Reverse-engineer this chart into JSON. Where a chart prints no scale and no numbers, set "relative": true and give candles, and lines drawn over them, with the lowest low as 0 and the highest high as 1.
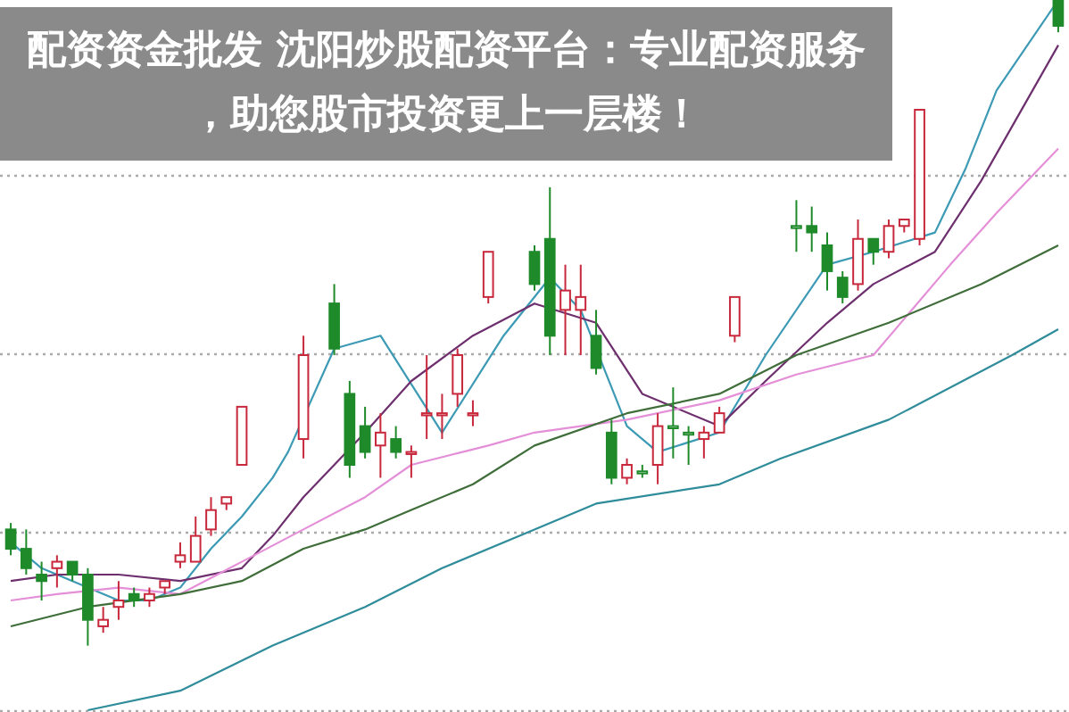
{
  "chart_data": {
    "type": "candlestick",
    "title": "配资资金批发 沈阳炒股配资平台：专业配资服务，助您股市投资更上一层楼！",
    "relative": true,
    "grid": "y",
    "categories": [
      null,
      null,
      null,
      null,
      null,
      null,
      null,
      null,
      null,
      null,
      null,
      null,
      null,
      null,
      null,
      null,
      null,
      null,
      null,
      null,
      null,
      null,
      null,
      null,
      null,
      null,
      null,
      null,
      null,
      null,
      null,
      null,
      null,
      null,
      null,
      null,
      null,
      null,
      null,
      null,
      null,
      null,
      null,
      null,
      null,
      null,
      null,
      null,
      null,
      null,
      null,
      null,
      null,
      null,
      null,
      null,
      null,
      null,
      null,
      null,
      null,
      null,
      null,
      null,
      null,
      null,
      null,
      null,
      null
    ],
    "ohlc": [
      [
        0.18,
        0.19,
        0.14,
        0.15
      ],
      [
        0.15,
        0.18,
        0.11,
        0.12
      ],
      [
        0.11,
        0.13,
        0.07,
        0.1
      ],
      [
        0.12,
        0.14,
        0.09,
        0.13
      ],
      [
        0.13,
        0.13,
        0.1,
        0.11
      ],
      [
        0.11,
        0.12,
        0.0,
        0.04
      ],
      [
        0.03,
        0.06,
        0.02,
        0.04
      ],
      [
        0.06,
        0.1,
        0.04,
        0.07
      ],
      [
        0.08,
        0.09,
        0.06,
        0.07
      ],
      [
        0.07,
        0.09,
        0.06,
        0.08
      ],
      [
        0.09,
        0.1,
        0.08,
        0.1
      ],
      [
        0.13,
        0.16,
        0.12,
        0.14
      ],
      [
        0.13,
        0.2,
        0.13,
        0.17
      ],
      [
        0.18,
        0.23,
        0.17,
        0.21
      ],
      [
        0.22,
        0.23,
        0.21,
        0.23
      ],
      [
        0.28,
        0.37,
        0.28,
        0.37
      ],
      null,
      null,
      null,
      [
        0.32,
        0.48,
        0.29,
        0.45
      ],
      null,
      [
        0.53,
        0.56,
        0.45,
        0.46
      ],
      [
        0.39,
        0.41,
        0.26,
        0.28
      ],
      [
        0.34,
        0.37,
        0.29,
        0.3
      ],
      [
        0.31,
        0.36,
        0.26,
        0.33
      ],
      [
        0.32,
        0.34,
        0.29,
        0.3
      ],
      [
        0.3,
        0.31,
        0.26,
        0.3
      ],
      [
        0.36,
        0.45,
        0.32,
        0.36
      ],
      [
        0.36,
        0.39,
        0.32,
        0.36
      ],
      [
        0.39,
        0.46,
        0.37,
        0.45
      ],
      [
        0.36,
        0.38,
        0.34,
        0.36
      ],
      [
        0.54,
        0.61,
        0.53,
        0.61
      ],
      null,
      null,
      [
        0.61,
        0.62,
        0.55,
        0.56
      ],
      [
        0.63,
        0.71,
        0.45,
        0.48
      ],
      [
        0.52,
        0.59,
        0.45,
        0.55
      ],
      [
        0.52,
        0.59,
        0.45,
        0.54
      ],
      [
        0.48,
        0.52,
        0.42,
        0.43
      ],
      [
        0.33,
        0.35,
        0.25,
        0.26
      ],
      [
        0.26,
        0.29,
        0.25,
        0.28
      ],
      [
        0.27,
        0.28,
        0.26,
        0.27
      ],
      [
        0.28,
        0.36,
        0.25,
        0.34
      ],
      [
        0.34,
        0.4,
        0.29,
        0.34
      ],
      [
        0.33,
        0.34,
        0.28,
        0.33
      ],
      [
        0.32,
        0.34,
        0.29,
        0.33
      ],
      [
        0.33,
        0.37,
        0.33,
        0.36
      ],
      [
        0.48,
        0.54,
        0.47,
        0.54
      ],
      null,
      null,
      null,
      [
        0.65,
        0.69,
        0.61,
        0.65
      ],
      [
        0.65,
        0.68,
        0.61,
        0.64
      ],
      [
        0.62,
        0.64,
        0.55,
        0.58
      ],
      [
        0.57,
        0.58,
        0.53,
        0.54
      ],
      [
        0.56,
        0.66,
        0.55,
        0.63
      ],
      [
        0.63,
        0.63,
        0.59,
        0.61
      ],
      [
        0.61,
        0.66,
        0.6,
        0.65
      ],
      [
        0.65,
        0.66,
        0.64,
        0.66
      ],
      [
        0.63,
        0.83,
        0.62,
        0.83
      ],
      null,
      null,
      null,
      null,
      null,
      null,
      null,
      null,
      [
        1,
        1,
        0.95,
        0.96
      ]
    ],
    "colors": [
      "#1f8a2a",
      "#1f8a2a",
      "#1f8a2a",
      "#c8283c",
      "#1f8a2a",
      "#1f8a2a",
      "#c8283c",
      "#c8283c",
      "#1f8a2a",
      "#c8283c",
      "#c8283c",
      "#c8283c",
      "#c8283c",
      "#c8283c",
      "#c8283c",
      "#c8283c",
      null,
      null,
      null,
      "#c8283c",
      null,
      "#1f8a2a",
      "#1f8a2a",
      "#1f8a2a",
      "#c8283c",
      "#1f8a2a",
      "#c8283c",
      "#c8283c",
      "#c8283c",
      "#c8283c",
      "#c8283c",
      "#c8283c",
      null,
      null,
      "#1f8a2a",
      "#1f8a2a",
      "#c8283c",
      "#c8283c",
      "#1f8a2a",
      "#1f8a2a",
      "#c8283c",
      "#1f8a2a",
      "#c8283c",
      "#1f8a2a",
      "#1f8a2a",
      "#c8283c",
      "#c8283c",
      "#c8283c",
      null,
      null,
      null,
      "#1f8a2a",
      "#1f8a2a",
      "#1f8a2a",
      "#1f8a2a",
      "#c8283c",
      "#1f8a2a",
      "#c8283c",
      "#c8283c",
      "#c8283c",
      null,
      null,
      null,
      null,
      null,
      null,
      null,
      null,
      "#1f8a2a"
    ],
    "series": [
      {
        "type": "line",
        "color": "#3c9ab4",
        "values": [
          0.16,
          null,
          0.12,
          null,
          null,
          0.09,
          null,
          0.07,
          null,
          0.07,
          null,
          0.09,
          null,
          0.15,
          null,
          0.2,
          null,
          0.26,
          0.3,
          null,
          null,
          0.46,
          null,
          null,
          0.48,
          null,
          null,
          null,
          0.33,
          null,
          null,
          null,
          0.48,
          null,
          null,
          0.57,
          null,
          0.52,
          null,
          null,
          0.34,
          null,
          0.3,
          null,
          null,
          null,
          0.33,
          null,
          null,
          0.45,
          null,
          null,
          null,
          0.59,
          null,
          null,
          0.61,
          null,
          null,
          null,
          0.64,
          null,
          0.74,
          null,
          0.86,
          null,
          null,
          null,
          1.0
        ]
      },
      {
        "type": "line",
        "color": "#6e2f6e",
        "values": [
          0.1,
          null,
          null,
          0.11,
          null,
          null,
          null,
          0.11,
          null,
          null,
          null,
          0.1,
          null,
          null,
          null,
          0.12,
          null,
          0.17,
          null,
          0.23,
          null,
          null,
          null,
          0.33,
          null,
          null,
          0.41,
          null,
          null,
          null,
          0.48,
          null,
          null,
          null,
          0.53,
          null,
          null,
          null,
          0.5,
          null,
          null,
          0.39,
          null,
          null,
          null,
          null,
          0.34,
          null,
          null,
          0.41,
          null,
          null,
          null,
          0.5,
          null,
          null,
          0.56,
          null,
          null,
          null,
          0.61,
          null,
          null,
          0.72,
          null,
          null,
          null,
          null,
          0.93
        ]
      },
      {
        "type": "line",
        "color": "#e48fd8",
        "values": [
          0.07,
          null,
          null,
          0.08,
          null,
          null,
          null,
          0.09,
          null,
          null,
          null,
          0.08,
          null,
          null,
          null,
          0.13,
          null,
          null,
          null,
          0.18,
          null,
          null,
          null,
          0.23,
          null,
          null,
          0.28,
          null,
          null,
          null,
          null,
          0.31,
          null,
          null,
          0.33,
          null,
          null,
          null,
          null,
          null,
          0.35,
          null,
          null,
          null,
          null,
          null,
          0.38,
          null,
          null,
          null,
          null,
          0.42,
          null,
          null,
          null,
          null,
          0.45,
          null,
          null,
          null,
          null,
          0.59,
          null,
          null,
          0.67,
          null,
          null,
          null,
          0.77
        ]
      },
      {
        "type": "line",
        "color": "#3f6e3a",
        "values": [
          0.03,
          null,
          null,
          null,
          null,
          0.06,
          null,
          null,
          null,
          null,
          null,
          0.08,
          null,
          null,
          null,
          0.1,
          null,
          null,
          null,
          0.15,
          null,
          null,
          null,
          0.18,
          null,
          null,
          0.21,
          null,
          null,
          null,
          0.25,
          null,
          null,
          null,
          0.31,
          null,
          null,
          null,
          null,
          null,
          0.36,
          null,
          null,
          null,
          null,
          null,
          0.39,
          null,
          null,
          null,
          null,
          0.45,
          null,
          null,
          null,
          null,
          null,
          0.5,
          null,
          null,
          null,
          null,
          null,
          0.56,
          null,
          null,
          null,
          null,
          0.62
        ]
      },
      {
        "type": "line",
        "color": "#2f8c9a",
        "values": [
          null,
          null,
          null,
          null,
          null,
          -0.1,
          null,
          null,
          null,
          null,
          null,
          -0.07,
          null,
          null,
          null,
          null,
          null,
          0,
          null,
          null,
          null,
          null,
          null,
          0.06,
          null,
          null,
          null,
          null,
          0.12,
          null,
          null,
          null,
          null,
          null,
          0.18,
          null,
          null,
          null,
          0.22,
          null,
          null,
          null,
          null,
          null,
          null,
          null,
          0.25,
          null,
          null,
          null,
          0.29,
          null,
          null,
          null,
          null,
          null,
          null,
          0.35,
          null,
          null,
          null,
          null,
          null,
          null,
          null,
          0.45,
          null,
          null,
          0.49
        ]
      }
    ]
  }
}
